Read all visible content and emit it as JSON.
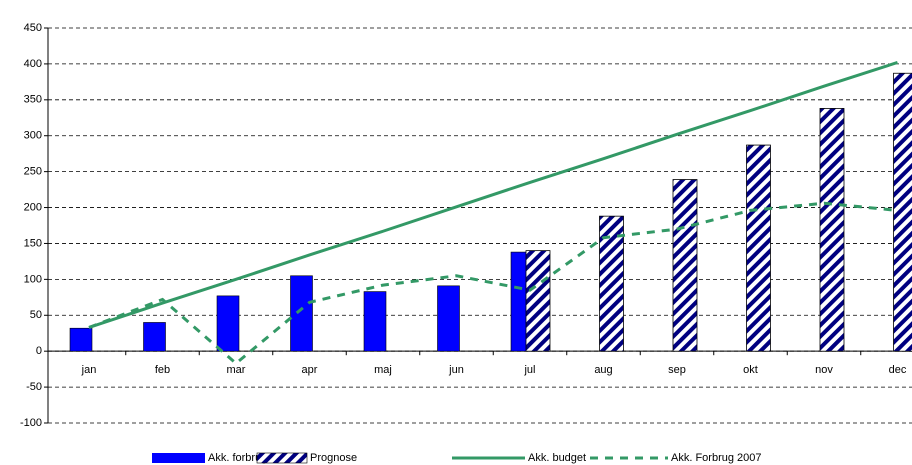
{
  "chart_data": {
    "type": "bar",
    "categories": [
      "jan",
      "feb",
      "mar",
      "apr",
      "maj",
      "jun",
      "jul",
      "aug",
      "sep",
      "okt",
      "nov",
      "dec"
    ],
    "series": [
      {
        "name": "Akk. forbrug",
        "style": "bar",
        "color": "#0000ff",
        "values": [
          32,
          40,
          77,
          105,
          83,
          91,
          138,
          null,
          null,
          null,
          null,
          null
        ]
      },
      {
        "name": "Prognose",
        "style": "hatched-bar",
        "color": "#000080",
        "values": [
          null,
          null,
          null,
          null,
          null,
          null,
          140,
          188,
          239,
          287,
          338,
          387
        ]
      },
      {
        "name": "Akk. budget",
        "style": "line",
        "color": "#339966",
        "values": [
          33,
          67,
          100,
          134,
          167,
          201,
          235,
          268,
          302,
          335,
          369,
          402
        ]
      },
      {
        "name": "Akk. Forbrug 2007",
        "style": "dashed-line",
        "color": "#339966",
        "values": [
          33,
          72,
          -17,
          68,
          92,
          105,
          85,
          158,
          170,
          196,
          206,
          196
        ]
      }
    ],
    "ylim": [
      -100,
      450
    ],
    "yticks": [
      -100,
      -50,
      0,
      50,
      100,
      150,
      200,
      250,
      300,
      350,
      400,
      450
    ],
    "grid": true,
    "legend": "bottom"
  }
}
